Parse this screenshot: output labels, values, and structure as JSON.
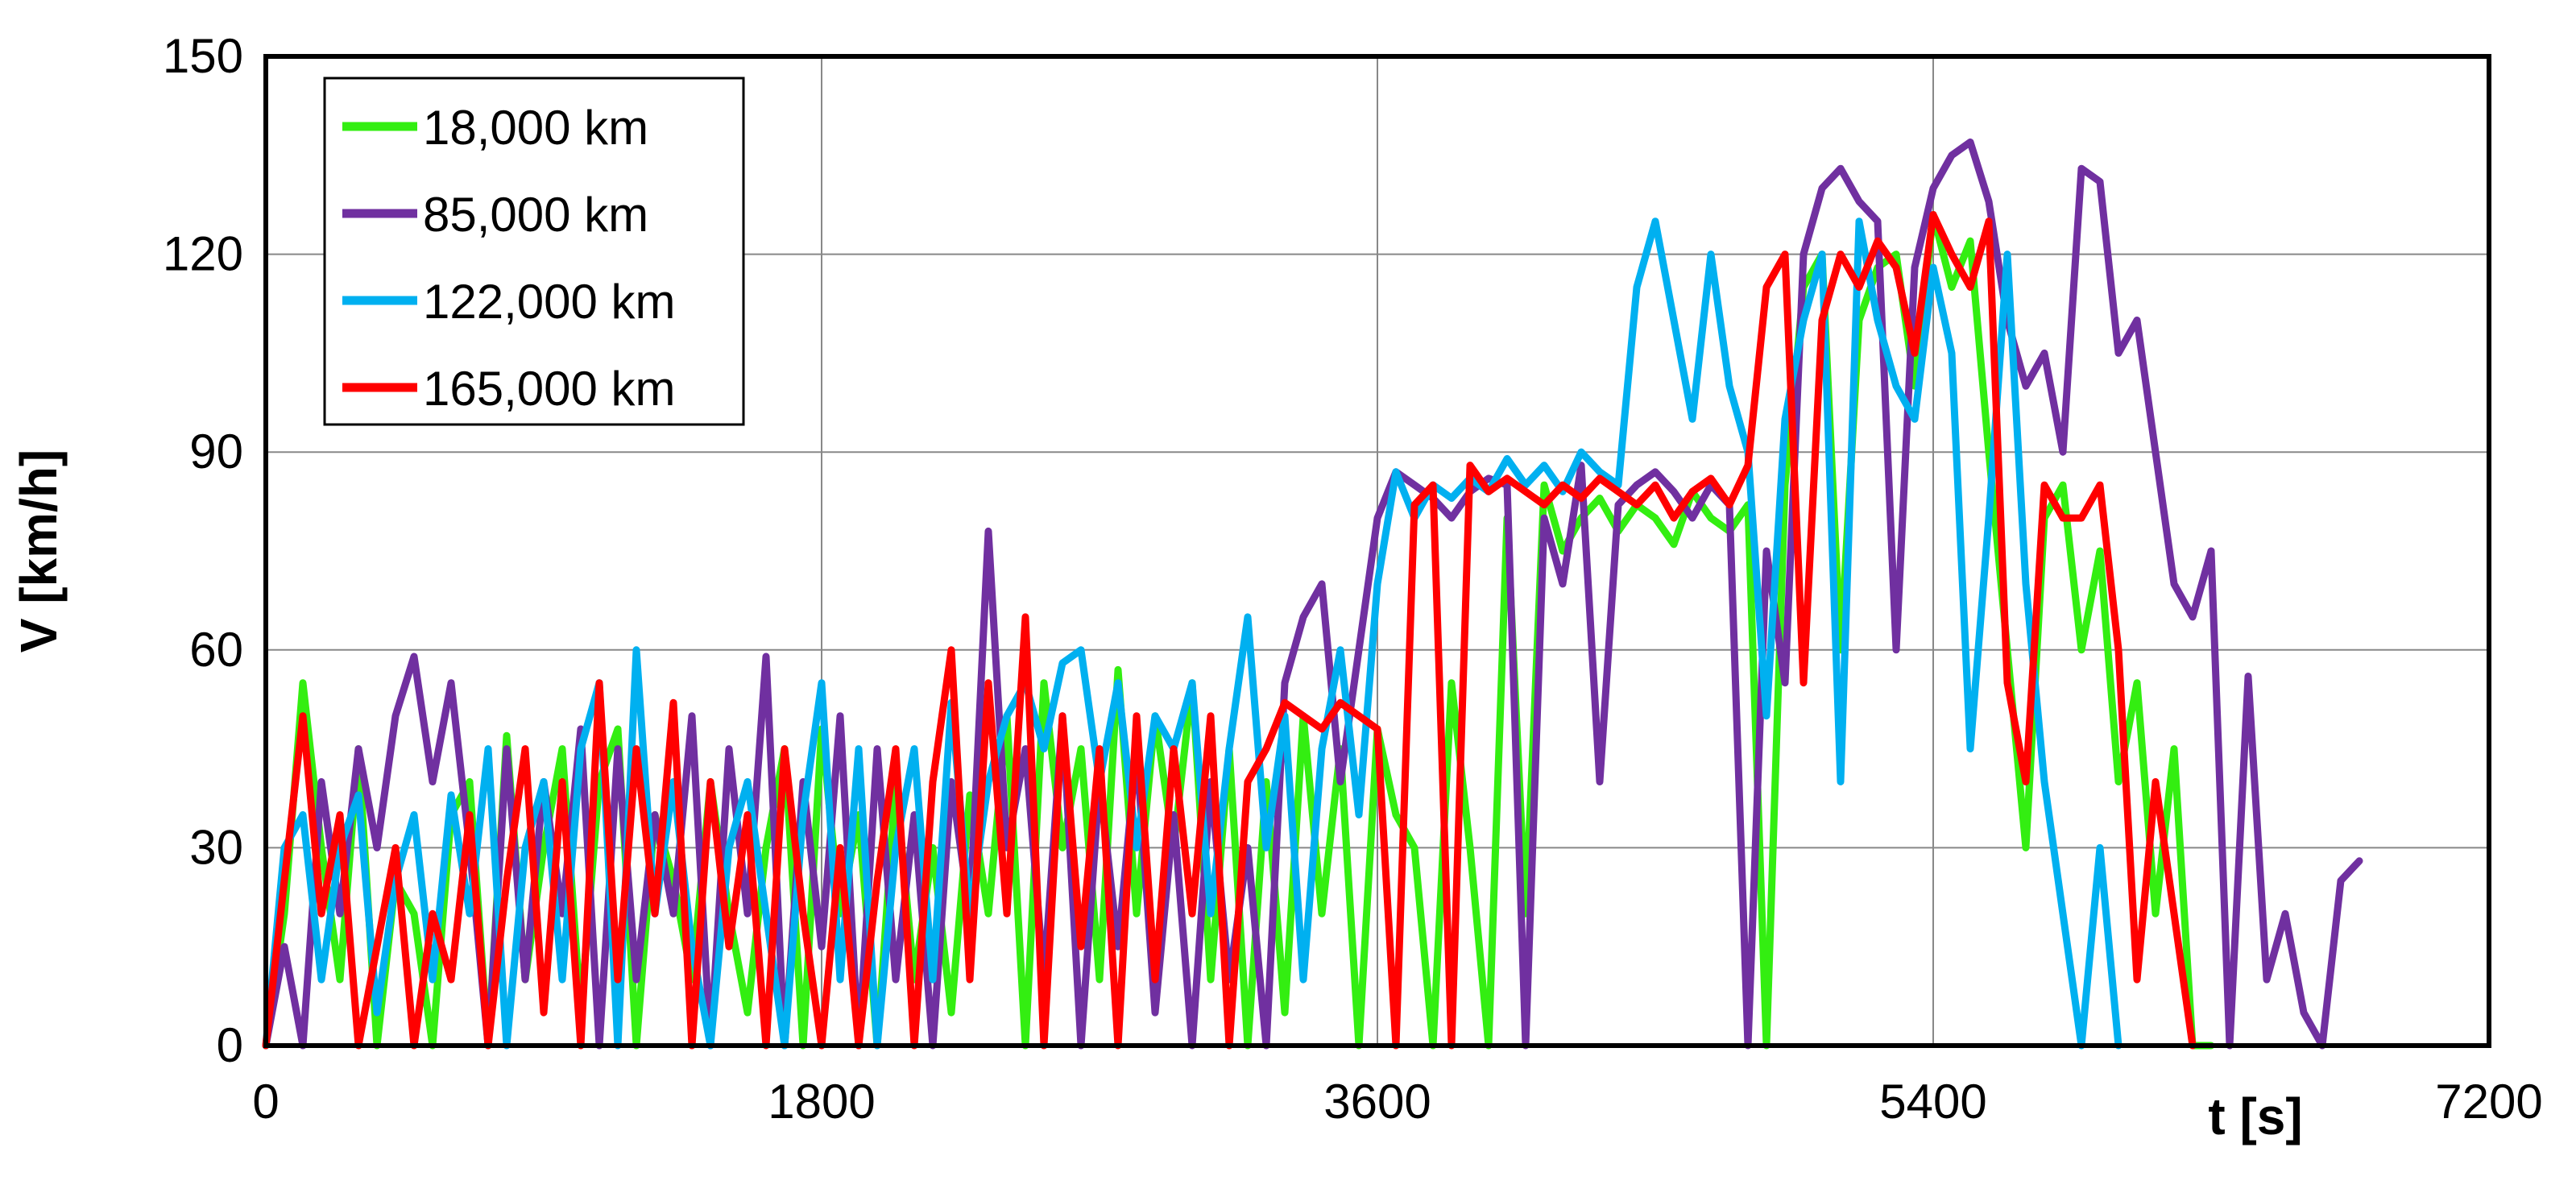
{
  "chart_data": {
    "type": "line",
    "xlabel": "t [s]",
    "ylabel": "V [km/h]",
    "xlim": [
      0,
      7200
    ],
    "ylim": [
      0,
      150
    ],
    "xticks": [
      0,
      1800,
      3600,
      5400,
      7200
    ],
    "yticks": [
      0,
      30,
      60,
      90,
      120,
      150
    ],
    "grid": true,
    "legend_position": "top-left",
    "series": [
      {
        "name": "18,000 km",
        "color": "#33ee11",
        "x": [
          0,
          60,
          120,
          180,
          240,
          300,
          360,
          420,
          480,
          540,
          600,
          660,
          720,
          780,
          840,
          900,
          960,
          1020,
          1080,
          1140,
          1200,
          1260,
          1320,
          1380,
          1440,
          1500,
          1560,
          1620,
          1680,
          1740,
          1800,
          1860,
          1920,
          1980,
          2040,
          2100,
          2160,
          2220,
          2280,
          2340,
          2400,
          2460,
          2520,
          2580,
          2640,
          2700,
          2760,
          2820,
          2880,
          2940,
          3000,
          3060,
          3120,
          3180,
          3240,
          3300,
          3360,
          3420,
          3480,
          3540,
          3600,
          3660,
          3720,
          3780,
          3840,
          3900,
          3960,
          4020,
          4080,
          4140,
          4200,
          4260,
          4320,
          4380,
          4440,
          4500,
          4560,
          4620,
          4680,
          4740,
          4800,
          4860,
          4920,
          4980,
          5040,
          5100,
          5160,
          5220,
          5280,
          5340,
          5400,
          5460,
          5520,
          5580,
          5640,
          5700,
          5760,
          5820,
          5880,
          5940,
          6000,
          6060,
          6120,
          6180,
          6240,
          6300
        ],
        "y": [
          0,
          20,
          55,
          30,
          10,
          45,
          0,
          25,
          20,
          0,
          35,
          40,
          0,
          47,
          10,
          30,
          45,
          5,
          40,
          48,
          0,
          35,
          25,
          10,
          40,
          20,
          5,
          30,
          45,
          0,
          48,
          20,
          35,
          0,
          40,
          10,
          30,
          5,
          38,
          20,
          50,
          0,
          55,
          30,
          45,
          10,
          57,
          20,
          50,
          30,
          55,
          10,
          45,
          0,
          40,
          5,
          50,
          20,
          45,
          0,
          48,
          35,
          30,
          0,
          55,
          30,
          0,
          80,
          20,
          85,
          75,
          80,
          83,
          78,
          82,
          80,
          76,
          84,
          80,
          78,
          82,
          0,
          85,
          115,
          120,
          60,
          110,
          118,
          120,
          100,
          126,
          115,
          122,
          90,
          60,
          30,
          80,
          85,
          60,
          75,
          40,
          55,
          20,
          45,
          0,
          0
        ]
      },
      {
        "name": "85,000 km",
        "color": "#7030a0",
        "x": [
          0,
          60,
          120,
          180,
          240,
          300,
          360,
          420,
          480,
          540,
          600,
          660,
          720,
          780,
          840,
          900,
          960,
          1020,
          1080,
          1140,
          1200,
          1260,
          1320,
          1380,
          1440,
          1500,
          1560,
          1620,
          1680,
          1740,
          1800,
          1860,
          1920,
          1980,
          2040,
          2100,
          2160,
          2220,
          2280,
          2340,
          2400,
          2460,
          2520,
          2580,
          2640,
          2700,
          2760,
          2820,
          2880,
          2940,
          3000,
          3060,
          3120,
          3180,
          3240,
          3300,
          3360,
          3420,
          3480,
          3540,
          3600,
          3660,
          3720,
          3780,
          3840,
          3900,
          3960,
          4020,
          4080,
          4140,
          4200,
          4260,
          4320,
          4380,
          4440,
          4500,
          4560,
          4620,
          4680,
          4740,
          4800,
          4860,
          4920,
          4980,
          5040,
          5100,
          5160,
          5220,
          5280,
          5340,
          5400,
          5460,
          5520,
          5580,
          5640,
          5700,
          5760,
          5820,
          5880,
          5940,
          6000,
          6060,
          6120,
          6180,
          6240,
          6300,
          6360,
          6420,
          6480,
          6540,
          6600,
          6660,
          6720,
          6780
        ],
        "y": [
          0,
          15,
          0,
          40,
          20,
          45,
          30,
          50,
          59,
          40,
          55,
          30,
          0,
          45,
          10,
          40,
          20,
          48,
          0,
          45,
          10,
          35,
          20,
          50,
          0,
          45,
          20,
          59,
          0,
          40,
          15,
          50,
          0,
          45,
          10,
          35,
          0,
          40,
          20,
          78,
          30,
          45,
          10,
          50,
          0,
          40,
          15,
          45,
          5,
          35,
          0,
          40,
          10,
          30,
          0,
          55,
          65,
          70,
          40,
          60,
          80,
          87,
          85,
          83,
          80,
          84,
          86,
          85,
          0,
          80,
          70,
          88,
          40,
          82,
          85,
          87,
          84,
          80,
          85,
          82,
          0,
          75,
          55,
          120,
          130,
          133,
          128,
          125,
          60,
          118,
          130,
          135,
          137,
          128,
          110,
          100,
          105,
          90,
          133,
          131,
          105,
          110,
          90,
          70,
          65,
          75,
          0,
          56,
          10,
          20,
          5,
          0,
          25,
          28
        ]
      },
      {
        "name": "122,000 km",
        "color": "#00b0f0",
        "x": [
          0,
          60,
          120,
          180,
          240,
          300,
          360,
          420,
          480,
          540,
          600,
          660,
          720,
          780,
          840,
          900,
          960,
          1020,
          1080,
          1140,
          1200,
          1260,
          1320,
          1380,
          1440,
          1500,
          1560,
          1620,
          1680,
          1740,
          1800,
          1860,
          1920,
          1980,
          2040,
          2100,
          2160,
          2220,
          2280,
          2340,
          2400,
          2460,
          2520,
          2580,
          2640,
          2700,
          2760,
          2820,
          2880,
          2940,
          3000,
          3060,
          3120,
          3180,
          3240,
          3300,
          3360,
          3420,
          3480,
          3540,
          3600,
          3660,
          3720,
          3780,
          3840,
          3900,
          3960,
          4020,
          4080,
          4140,
          4200,
          4260,
          4320,
          4380,
          4440,
          4500,
          4560,
          4620,
          4680,
          4740,
          4800,
          4860,
          4920,
          4980,
          5040,
          5100,
          5160,
          5220,
          5280,
          5340,
          5400,
          5460,
          5520,
          5580,
          5640,
          5700,
          5760,
          5820,
          5880,
          5940,
          6000
        ],
        "y": [
          0,
          30,
          35,
          10,
          30,
          38,
          5,
          25,
          35,
          10,
          38,
          20,
          45,
          0,
          30,
          40,
          10,
          45,
          55,
          0,
          60,
          20,
          40,
          15,
          0,
          30,
          40,
          20,
          0,
          35,
          55,
          10,
          45,
          0,
          30,
          45,
          10,
          52,
          20,
          40,
          50,
          55,
          45,
          58,
          60,
          40,
          55,
          30,
          50,
          45,
          55,
          20,
          45,
          65,
          30,
          50,
          10,
          45,
          60,
          35,
          70,
          87,
          80,
          85,
          83,
          86,
          84,
          89,
          85,
          88,
          84,
          90,
          87,
          85,
          115,
          125,
          110,
          95,
          120,
          100,
          90,
          50,
          95,
          110,
          120,
          40,
          125,
          110,
          100,
          95,
          118,
          105,
          45,
          80,
          120,
          70,
          40,
          20,
          0,
          30,
          0
        ]
      },
      {
        "name": "165,000 km",
        "color": "#ff0000",
        "x": [
          0,
          60,
          120,
          180,
          240,
          300,
          360,
          420,
          480,
          540,
          600,
          660,
          720,
          780,
          840,
          900,
          960,
          1020,
          1080,
          1140,
          1200,
          1260,
          1320,
          1380,
          1440,
          1500,
          1560,
          1620,
          1680,
          1740,
          1800,
          1860,
          1920,
          1980,
          2040,
          2100,
          2160,
          2220,
          2280,
          2340,
          2400,
          2460,
          2520,
          2580,
          2640,
          2700,
          2760,
          2820,
          2880,
          2940,
          3000,
          3060,
          3120,
          3180,
          3240,
          3300,
          3360,
          3420,
          3480,
          3540,
          3600,
          3660,
          3720,
          3780,
          3840,
          3900,
          3960,
          4020,
          4080,
          4140,
          4200,
          4260,
          4320,
          4380,
          4440,
          4500,
          4560,
          4620,
          4680,
          4740,
          4800,
          4860,
          4920,
          4980,
          5040,
          5100,
          5160,
          5220,
          5280,
          5340,
          5400,
          5460,
          5520,
          5580,
          5640,
          5700,
          5760,
          5820,
          5880,
          5940,
          6000,
          6060,
          6120,
          6180,
          6240
        ],
        "y": [
          0,
          25,
          50,
          20,
          35,
          0,
          15,
          30,
          0,
          20,
          10,
          35,
          0,
          25,
          45,
          5,
          40,
          0,
          55,
          10,
          45,
          20,
          52,
          0,
          40,
          15,
          35,
          0,
          45,
          20,
          0,
          30,
          0,
          25,
          45,
          0,
          40,
          60,
          10,
          55,
          20,
          65,
          0,
          50,
          15,
          45,
          0,
          50,
          10,
          45,
          20,
          50,
          0,
          40,
          45,
          52,
          50,
          48,
          52,
          50,
          48,
          0,
          82,
          85,
          0,
          88,
          84,
          86,
          84,
          82,
          85,
          83,
          86,
          84,
          82,
          85,
          80,
          84,
          86,
          82,
          88,
          115,
          120,
          55,
          110,
          120,
          115,
          122,
          118,
          105,
          126,
          120,
          115,
          125,
          55,
          40,
          85,
          80,
          80,
          85,
          60,
          10,
          40,
          20,
          0
        ]
      }
    ]
  }
}
